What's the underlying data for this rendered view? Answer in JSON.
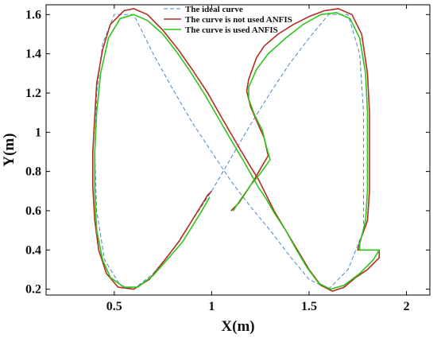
{
  "chart_data": {
    "type": "line",
    "xlabel": "X(m)",
    "ylabel": "Y(m)",
    "xlim": [
      0.15,
      2.12
    ],
    "ylim": [
      0.17,
      1.65
    ],
    "xticks": [
      0.5,
      1,
      1.5,
      2
    ],
    "xtick_labels": [
      "0.5",
      "1",
      "1.5",
      "2"
    ],
    "yticks": [
      0.2,
      0.4,
      0.6,
      0.8,
      1.0,
      1.2,
      1.4,
      1.6
    ],
    "ytick_labels": [
      "0.2",
      "0.4",
      "0.6",
      "0.8",
      "1",
      "1.2",
      "1.4",
      "1.6"
    ],
    "grid": false,
    "legend_position": "top-center",
    "series": [
      {
        "name": "The ideal curve",
        "color": "#4a86c5",
        "style": "dashed",
        "points": [
          [
            1,
            0.7
          ],
          [
            1.1,
            0.87
          ],
          [
            1.2,
            1.04
          ],
          [
            1.3,
            1.2
          ],
          [
            1.4,
            1.35
          ],
          [
            1.5,
            1.48
          ],
          [
            1.6,
            1.6
          ],
          [
            1.7,
            1.6
          ],
          [
            1.76,
            1.4
          ],
          [
            1.78,
            1.1
          ],
          [
            1.78,
            0.8
          ],
          [
            1.78,
            0.5
          ],
          [
            1.7,
            0.3
          ],
          [
            1.6,
            0.2
          ],
          [
            1.5,
            0.25
          ],
          [
            1.4,
            0.37
          ],
          [
            1.3,
            0.5
          ],
          [
            1.2,
            0.62
          ],
          [
            1.1,
            0.75
          ],
          [
            1,
            0.9
          ],
          [
            0.9,
            1.05
          ],
          [
            0.8,
            1.22
          ],
          [
            0.7,
            1.4
          ],
          [
            0.6,
            1.6
          ],
          [
            0.5,
            1.6
          ],
          [
            0.44,
            1.45
          ],
          [
            0.41,
            1.2
          ],
          [
            0.4,
            0.9
          ],
          [
            0.41,
            0.6
          ],
          [
            0.45,
            0.35
          ],
          [
            0.53,
            0.22
          ],
          [
            0.6,
            0.2
          ],
          [
            0.7,
            0.28
          ],
          [
            0.8,
            0.4
          ],
          [
            0.9,
            0.55
          ],
          [
            1,
            0.7
          ]
        ]
      },
      {
        "name": "The curve is not used ANFIS",
        "color": "#b22d20",
        "style": "solid",
        "points": [
          [
            1,
            0.7
          ],
          [
            0.98,
            0.68
          ],
          [
            0.93,
            0.6
          ],
          [
            0.88,
            0.52
          ],
          [
            0.83,
            0.44
          ],
          [
            0.76,
            0.35
          ],
          [
            0.68,
            0.25
          ],
          [
            0.6,
            0.2
          ],
          [
            0.52,
            0.21
          ],
          [
            0.46,
            0.28
          ],
          [
            0.42,
            0.4
          ],
          [
            0.4,
            0.55
          ],
          [
            0.39,
            0.72
          ],
          [
            0.39,
            0.9
          ],
          [
            0.4,
            1.08
          ],
          [
            0.41,
            1.25
          ],
          [
            0.44,
            1.42
          ],
          [
            0.48,
            1.55
          ],
          [
            0.55,
            1.62
          ],
          [
            0.6,
            1.63
          ],
          [
            0.67,
            1.6
          ],
          [
            0.75,
            1.52
          ],
          [
            0.83,
            1.42
          ],
          [
            0.9,
            1.32
          ],
          [
            0.98,
            1.2
          ],
          [
            1.06,
            1.06
          ],
          [
            1.13,
            0.94
          ],
          [
            1.19,
            0.84
          ],
          [
            1.24,
            0.76
          ],
          [
            1.28,
            0.68
          ],
          [
            1.32,
            0.6
          ],
          [
            1.38,
            0.5
          ],
          [
            1.44,
            0.4
          ],
          [
            1.5,
            0.3
          ],
          [
            1.56,
            0.22
          ],
          [
            1.62,
            0.19
          ],
          [
            1.68,
            0.21
          ],
          [
            1.74,
            0.26
          ],
          [
            1.8,
            0.3
          ],
          [
            1.86,
            0.36
          ],
          [
            1.86,
            0.4
          ],
          [
            1.75,
            0.4
          ],
          [
            1.76,
            0.44
          ],
          [
            1.8,
            0.55
          ],
          [
            1.81,
            0.7
          ],
          [
            1.81,
            0.9
          ],
          [
            1.81,
            1.1
          ],
          [
            1.8,
            1.3
          ],
          [
            1.77,
            1.5
          ],
          [
            1.72,
            1.6
          ],
          [
            1.65,
            1.63
          ],
          [
            1.58,
            1.62
          ],
          [
            1.5,
            1.59
          ],
          [
            1.42,
            1.55
          ],
          [
            1.34,
            1.5
          ],
          [
            1.27,
            1.44
          ],
          [
            1.23,
            1.38
          ],
          [
            1.19,
            1.27
          ],
          [
            1.18,
            1.21
          ],
          [
            1.2,
            1.13
          ],
          [
            1.23,
            1.06
          ],
          [
            1.27,
            0.97
          ],
          [
            1.29,
            0.88
          ],
          [
            1.26,
            0.83
          ],
          [
            1.22,
            0.76
          ],
          [
            1.18,
            0.7
          ],
          [
            1.14,
            0.64
          ],
          [
            1.1,
            0.6
          ]
        ]
      },
      {
        "name": "The curve is used ANFIS",
        "color": "#2fc41a",
        "style": "solid",
        "points": [
          [
            0.99,
            0.67
          ],
          [
            0.95,
            0.6
          ],
          [
            0.9,
            0.52
          ],
          [
            0.85,
            0.44
          ],
          [
            0.78,
            0.36
          ],
          [
            0.7,
            0.27
          ],
          [
            0.62,
            0.21
          ],
          [
            0.55,
            0.21
          ],
          [
            0.48,
            0.26
          ],
          [
            0.44,
            0.35
          ],
          [
            0.41,
            0.5
          ],
          [
            0.4,
            0.7
          ],
          [
            0.4,
            0.9
          ],
          [
            0.41,
            1.1
          ],
          [
            0.43,
            1.3
          ],
          [
            0.47,
            1.48
          ],
          [
            0.53,
            1.58
          ],
          [
            0.6,
            1.6
          ],
          [
            0.67,
            1.57
          ],
          [
            0.75,
            1.5
          ],
          [
            0.82,
            1.41
          ],
          [
            0.89,
            1.31
          ],
          [
            0.96,
            1.2
          ],
          [
            1.03,
            1.08
          ],
          [
            1.1,
            0.96
          ],
          [
            1.16,
            0.86
          ],
          [
            1.2,
            0.79
          ],
          [
            1.24,
            0.72
          ],
          [
            1.28,
            0.66
          ],
          [
            1.32,
            0.59
          ],
          [
            1.38,
            0.5
          ],
          [
            1.43,
            0.41
          ],
          [
            1.49,
            0.31
          ],
          [
            1.55,
            0.23
          ],
          [
            1.61,
            0.2
          ],
          [
            1.68,
            0.22
          ],
          [
            1.76,
            0.28
          ],
          [
            1.83,
            0.35
          ],
          [
            1.86,
            0.4
          ],
          [
            1.76,
            0.4
          ],
          [
            1.76,
            0.43
          ],
          [
            1.79,
            0.55
          ],
          [
            1.8,
            0.7
          ],
          [
            1.8,
            0.9
          ],
          [
            1.8,
            1.1
          ],
          [
            1.79,
            1.3
          ],
          [
            1.76,
            1.48
          ],
          [
            1.71,
            1.58
          ],
          [
            1.64,
            1.61
          ],
          [
            1.56,
            1.6
          ],
          [
            1.47,
            1.55
          ],
          [
            1.38,
            1.48
          ],
          [
            1.29,
            1.4
          ],
          [
            1.23,
            1.32
          ],
          [
            1.19,
            1.23
          ],
          [
            1.19,
            1.17
          ],
          [
            1.22,
            1.09
          ],
          [
            1.26,
            1.01
          ],
          [
            1.28,
            0.93
          ],
          [
            1.3,
            0.86
          ],
          [
            1.25,
            0.79
          ],
          [
            1.2,
            0.73
          ],
          [
            1.15,
            0.66
          ],
          [
            1.11,
            0.6
          ]
        ]
      }
    ]
  }
}
